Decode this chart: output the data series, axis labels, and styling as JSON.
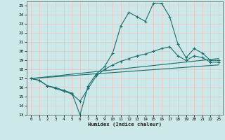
{
  "xlabel": "Humidex (Indice chaleur)",
  "xlim": [
    -0.5,
    23.5
  ],
  "ylim": [
    13,
    25.5
  ],
  "yticks": [
    13,
    14,
    15,
    16,
    17,
    18,
    19,
    20,
    21,
    22,
    23,
    24,
    25
  ],
  "xticks": [
    0,
    1,
    2,
    3,
    4,
    5,
    6,
    7,
    8,
    9,
    10,
    11,
    12,
    13,
    14,
    15,
    16,
    17,
    18,
    19,
    20,
    21,
    22,
    23
  ],
  "bg_color": "#cce8e8",
  "grid_color": "#e8c8c8",
  "line_color": "#1a6e6e",
  "line1_x": [
    0,
    1,
    2,
    3,
    4,
    5,
    6,
    7,
    8,
    9,
    10,
    11,
    12,
    13,
    14,
    15,
    16,
    17,
    18,
    19,
    20,
    21,
    22,
    23
  ],
  "line1_y": [
    17.0,
    16.8,
    16.2,
    16.0,
    15.7,
    15.4,
    13.0,
    16.2,
    17.5,
    18.3,
    19.8,
    22.8,
    24.3,
    23.8,
    23.3,
    25.3,
    25.3,
    23.8,
    20.8,
    19.3,
    20.3,
    19.8,
    19.0,
    19.0
  ],
  "line2_x": [
    0,
    1,
    2,
    3,
    4,
    5,
    6,
    7,
    8,
    9,
    10,
    11,
    12,
    13,
    14,
    15,
    16,
    17,
    18,
    19,
    20,
    21,
    22,
    23
  ],
  "line2_y": [
    17.0,
    16.8,
    16.2,
    15.9,
    15.6,
    15.3,
    14.5,
    15.9,
    17.3,
    18.0,
    18.5,
    18.9,
    19.2,
    19.5,
    19.7,
    20.0,
    20.3,
    20.5,
    19.5,
    19.0,
    19.5,
    19.3,
    18.8,
    18.8
  ],
  "line3_x": [
    0,
    23
  ],
  "line3_y": [
    17.0,
    19.2
  ],
  "line4_x": [
    0,
    23
  ],
  "line4_y": [
    17.0,
    18.5
  ]
}
